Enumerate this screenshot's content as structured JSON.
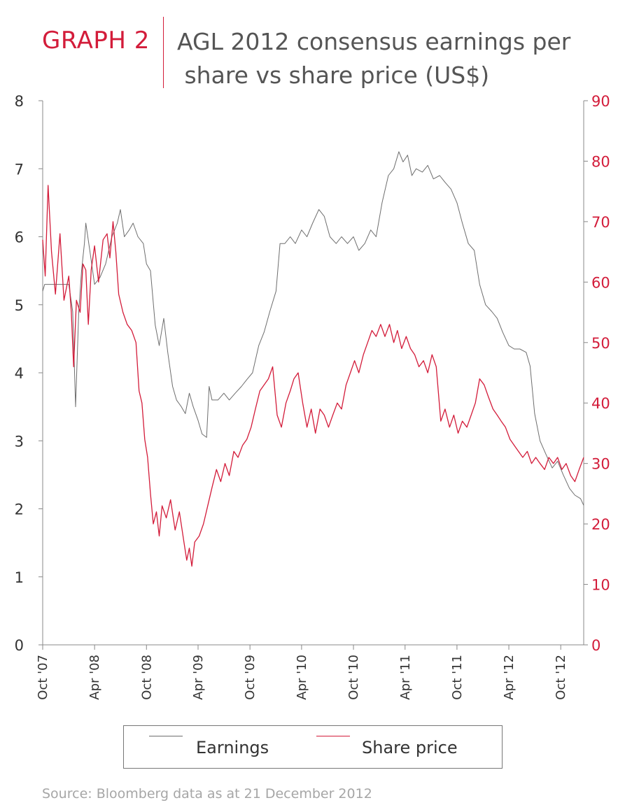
{
  "header": {
    "graph_label": "GRAPH 2",
    "title": "AGL 2012 consensus earnings per\n share vs share price (US$)"
  },
  "colors": {
    "earnings": "#6e6e6e",
    "share_price": "#d31c3a",
    "axis": "#888888",
    "grid": "#cfcfcf"
  },
  "legend": {
    "earnings_label": "Earnings",
    "share_price_label": "Share price"
  },
  "source": "Source: Bloomberg data as at 21 December 2012",
  "chart_data": {
    "type": "line",
    "title": "AGL 2012 consensus earnings per share vs share price (US$)",
    "x_tick_labels": [
      "Oct '07",
      "Apr '08",
      "Oct '08",
      "Apr '09",
      "Oct '09",
      "Apr '10",
      "Oct '10",
      "Apr '11",
      "Oct '11",
      "Apr '12",
      "Oct '12"
    ],
    "x_tick_dates": [
      "2007-10-01",
      "2008-04-01",
      "2008-10-01",
      "2009-04-01",
      "2009-10-01",
      "2010-04-01",
      "2010-10-01",
      "2011-04-01",
      "2011-10-01",
      "2012-04-01",
      "2012-10-01"
    ],
    "x_range": [
      "2007-10-01",
      "2012-12-21"
    ],
    "y_left": {
      "ticks": [
        0,
        1,
        2,
        3,
        4,
        5,
        6,
        7,
        8
      ],
      "range": [
        0,
        8
      ]
    },
    "y_right": {
      "ticks": [
        0,
        10,
        20,
        30,
        40,
        50,
        60,
        70,
        80,
        90
      ],
      "range": [
        0,
        90
      ]
    },
    "grid": false,
    "legend_position": "bottom",
    "series": [
      {
        "name": "Earnings",
        "axis": "left",
        "points": [
          [
            "2007-10-01",
            5.2
          ],
          [
            "2007-10-08",
            5.3
          ],
          [
            "2007-11-01",
            5.3
          ],
          [
            "2007-12-01",
            5.3
          ],
          [
            "2008-01-01",
            5.3
          ],
          [
            "2008-01-15",
            4.9
          ],
          [
            "2008-01-25",
            3.5
          ],
          [
            "2008-02-05",
            4.9
          ],
          [
            "2008-02-15",
            5.5
          ],
          [
            "2008-02-25",
            5.9
          ],
          [
            "2008-03-01",
            6.2
          ],
          [
            "2008-03-15",
            5.8
          ],
          [
            "2008-04-01",
            5.3
          ],
          [
            "2008-04-20",
            5.4
          ],
          [
            "2008-05-10",
            5.6
          ],
          [
            "2008-06-01",
            6.0
          ],
          [
            "2008-06-20",
            6.2
          ],
          [
            "2008-07-01",
            6.4
          ],
          [
            "2008-07-15",
            6.0
          ],
          [
            "2008-08-01",
            6.1
          ],
          [
            "2008-08-15",
            6.2
          ],
          [
            "2008-09-01",
            6.0
          ],
          [
            "2008-09-20",
            5.9
          ],
          [
            "2008-10-01",
            5.6
          ],
          [
            "2008-10-15",
            5.5
          ],
          [
            "2008-11-01",
            4.7
          ],
          [
            "2008-11-15",
            4.4
          ],
          [
            "2008-12-01",
            4.8
          ],
          [
            "2008-12-15",
            4.3
          ],
          [
            "2009-01-01",
            3.8
          ],
          [
            "2009-01-15",
            3.6
          ],
          [
            "2009-02-01",
            3.5
          ],
          [
            "2009-02-15",
            3.4
          ],
          [
            "2009-03-01",
            3.7
          ],
          [
            "2009-03-15",
            3.5
          ],
          [
            "2009-04-01",
            3.3
          ],
          [
            "2009-04-15",
            3.1
          ],
          [
            "2009-05-01",
            3.05
          ],
          [
            "2009-05-10",
            3.8
          ],
          [
            "2009-05-20",
            3.6
          ],
          [
            "2009-06-10",
            3.6
          ],
          [
            "2009-07-01",
            3.7
          ],
          [
            "2009-07-20",
            3.6
          ],
          [
            "2009-08-10",
            3.7
          ],
          [
            "2009-09-01",
            3.8
          ],
          [
            "2009-09-20",
            3.9
          ],
          [
            "2009-10-10",
            4.0
          ],
          [
            "2009-11-01",
            4.4
          ],
          [
            "2009-11-20",
            4.6
          ],
          [
            "2009-12-10",
            4.9
          ],
          [
            "2010-01-01",
            5.2
          ],
          [
            "2010-01-15",
            5.9
          ],
          [
            "2010-02-01",
            5.9
          ],
          [
            "2010-02-20",
            6.0
          ],
          [
            "2010-03-10",
            5.9
          ],
          [
            "2010-04-01",
            6.1
          ],
          [
            "2010-04-20",
            6.0
          ],
          [
            "2010-05-10",
            6.2
          ],
          [
            "2010-06-01",
            6.4
          ],
          [
            "2010-06-20",
            6.3
          ],
          [
            "2010-07-10",
            6.0
          ],
          [
            "2010-08-01",
            5.9
          ],
          [
            "2010-08-20",
            6.0
          ],
          [
            "2010-09-10",
            5.9
          ],
          [
            "2010-10-01",
            6.0
          ],
          [
            "2010-10-20",
            5.8
          ],
          [
            "2010-11-10",
            5.9
          ],
          [
            "2010-12-01",
            6.1
          ],
          [
            "2010-12-20",
            6.0
          ],
          [
            "2011-01-10",
            6.5
          ],
          [
            "2011-02-01",
            6.9
          ],
          [
            "2011-02-20",
            7.0
          ],
          [
            "2011-03-10",
            7.25
          ],
          [
            "2011-03-25",
            7.1
          ],
          [
            "2011-04-10",
            7.2
          ],
          [
            "2011-04-25",
            6.9
          ],
          [
            "2011-05-10",
            7.0
          ],
          [
            "2011-06-01",
            6.95
          ],
          [
            "2011-06-20",
            7.05
          ],
          [
            "2011-07-10",
            6.85
          ],
          [
            "2011-08-01",
            6.9
          ],
          [
            "2011-08-20",
            6.8
          ],
          [
            "2011-09-10",
            6.7
          ],
          [
            "2011-10-01",
            6.5
          ],
          [
            "2011-10-20",
            6.2
          ],
          [
            "2011-11-10",
            5.9
          ],
          [
            "2011-12-01",
            5.8
          ],
          [
            "2011-12-20",
            5.3
          ],
          [
            "2012-01-10",
            5.0
          ],
          [
            "2012-02-01",
            4.9
          ],
          [
            "2012-02-20",
            4.8
          ],
          [
            "2012-03-10",
            4.6
          ],
          [
            "2012-04-01",
            4.4
          ],
          [
            "2012-04-20",
            4.35
          ],
          [
            "2012-05-10",
            4.35
          ],
          [
            "2012-06-01",
            4.3
          ],
          [
            "2012-06-15",
            4.1
          ],
          [
            "2012-07-01",
            3.4
          ],
          [
            "2012-07-20",
            3.0
          ],
          [
            "2012-08-10",
            2.8
          ],
          [
            "2012-09-01",
            2.6
          ],
          [
            "2012-09-20",
            2.7
          ],
          [
            "2012-10-10",
            2.5
          ],
          [
            "2012-11-01",
            2.3
          ],
          [
            "2012-11-20",
            2.2
          ],
          [
            "2012-12-10",
            2.15
          ],
          [
            "2012-12-21",
            2.05
          ]
        ]
      },
      {
        "name": "Share price",
        "axis": "right",
        "points": [
          [
            "2007-10-01",
            67
          ],
          [
            "2007-10-10",
            61
          ],
          [
            "2007-10-20",
            76
          ],
          [
            "2007-11-01",
            65
          ],
          [
            "2007-11-15",
            58
          ],
          [
            "2007-12-01",
            68
          ],
          [
            "2007-12-15",
            57
          ],
          [
            "2008-01-01",
            61
          ],
          [
            "2008-01-10",
            55
          ],
          [
            "2008-01-18",
            46
          ],
          [
            "2008-01-28",
            57
          ],
          [
            "2008-02-10",
            55
          ],
          [
            "2008-02-20",
            63
          ],
          [
            "2008-03-01",
            62
          ],
          [
            "2008-03-10",
            53
          ],
          [
            "2008-03-20",
            62
          ],
          [
            "2008-04-01",
            66
          ],
          [
            "2008-04-15",
            60
          ],
          [
            "2008-05-01",
            67
          ],
          [
            "2008-05-15",
            68
          ],
          [
            "2008-05-25",
            64
          ],
          [
            "2008-06-05",
            70
          ],
          [
            "2008-06-15",
            65
          ],
          [
            "2008-06-25",
            58
          ],
          [
            "2008-07-10",
            55
          ],
          [
            "2008-07-25",
            53
          ],
          [
            "2008-08-10",
            52
          ],
          [
            "2008-08-25",
            50
          ],
          [
            "2008-09-05",
            42
          ],
          [
            "2008-09-15",
            40
          ],
          [
            "2008-09-25",
            34
          ],
          [
            "2008-10-05",
            31
          ],
          [
            "2008-10-15",
            25
          ],
          [
            "2008-10-25",
            20
          ],
          [
            "2008-11-05",
            22
          ],
          [
            "2008-11-15",
            18
          ],
          [
            "2008-11-25",
            23
          ],
          [
            "2008-12-10",
            21
          ],
          [
            "2008-12-25",
            24
          ],
          [
            "2009-01-10",
            19
          ],
          [
            "2009-01-25",
            22
          ],
          [
            "2009-02-10",
            17
          ],
          [
            "2009-02-20",
            14
          ],
          [
            "2009-03-01",
            16
          ],
          [
            "2009-03-10",
            13
          ],
          [
            "2009-03-20",
            17
          ],
          [
            "2009-04-05",
            18
          ],
          [
            "2009-04-20",
            20
          ],
          [
            "2009-05-05",
            23
          ],
          [
            "2009-05-20",
            26
          ],
          [
            "2009-06-05",
            29
          ],
          [
            "2009-06-20",
            27
          ],
          [
            "2009-07-05",
            30
          ],
          [
            "2009-07-20",
            28
          ],
          [
            "2009-08-05",
            32
          ],
          [
            "2009-08-20",
            31
          ],
          [
            "2009-09-05",
            33
          ],
          [
            "2009-09-20",
            34
          ],
          [
            "2009-10-05",
            36
          ],
          [
            "2009-10-20",
            39
          ],
          [
            "2009-11-05",
            42
          ],
          [
            "2009-11-20",
            43
          ],
          [
            "2009-12-05",
            44
          ],
          [
            "2009-12-20",
            46
          ],
          [
            "2010-01-05",
            38
          ],
          [
            "2010-01-20",
            36
          ],
          [
            "2010-02-05",
            40
          ],
          [
            "2010-02-20",
            42
          ],
          [
            "2010-03-05",
            44
          ],
          [
            "2010-03-20",
            45
          ],
          [
            "2010-04-05",
            40
          ],
          [
            "2010-04-20",
            36
          ],
          [
            "2010-05-05",
            39
          ],
          [
            "2010-05-20",
            35
          ],
          [
            "2010-06-05",
            39
          ],
          [
            "2010-06-20",
            38
          ],
          [
            "2010-07-05",
            36
          ],
          [
            "2010-07-20",
            38
          ],
          [
            "2010-08-05",
            40
          ],
          [
            "2010-08-20",
            39
          ],
          [
            "2010-09-05",
            43
          ],
          [
            "2010-09-20",
            45
          ],
          [
            "2010-10-05",
            47
          ],
          [
            "2010-10-20",
            45
          ],
          [
            "2010-11-05",
            48
          ],
          [
            "2010-11-20",
            50
          ],
          [
            "2010-12-05",
            52
          ],
          [
            "2010-12-20",
            51
          ],
          [
            "2011-01-05",
            53
          ],
          [
            "2011-01-20",
            51
          ],
          [
            "2011-02-05",
            53
          ],
          [
            "2011-02-20",
            50
          ],
          [
            "2011-03-05",
            52
          ],
          [
            "2011-03-20",
            49
          ],
          [
            "2011-04-05",
            51
          ],
          [
            "2011-04-20",
            49
          ],
          [
            "2011-05-05",
            48
          ],
          [
            "2011-05-20",
            46
          ],
          [
            "2011-06-05",
            47
          ],
          [
            "2011-06-20",
            45
          ],
          [
            "2011-07-05",
            48
          ],
          [
            "2011-07-20",
            46
          ],
          [
            "2011-08-05",
            37
          ],
          [
            "2011-08-20",
            39
          ],
          [
            "2011-09-05",
            36
          ],
          [
            "2011-09-20",
            38
          ],
          [
            "2011-10-05",
            35
          ],
          [
            "2011-10-20",
            37
          ],
          [
            "2011-11-05",
            36
          ],
          [
            "2011-11-20",
            38
          ],
          [
            "2011-12-05",
            40
          ],
          [
            "2011-12-20",
            44
          ],
          [
            "2012-01-05",
            43
          ],
          [
            "2012-01-20",
            41
          ],
          [
            "2012-02-05",
            39
          ],
          [
            "2012-02-20",
            38
          ],
          [
            "2012-03-05",
            37
          ],
          [
            "2012-03-20",
            36
          ],
          [
            "2012-04-05",
            34
          ],
          [
            "2012-04-20",
            33
          ],
          [
            "2012-05-05",
            32
          ],
          [
            "2012-05-20",
            31
          ],
          [
            "2012-06-05",
            32
          ],
          [
            "2012-06-20",
            30
          ],
          [
            "2012-07-05",
            31
          ],
          [
            "2012-07-20",
            30
          ],
          [
            "2012-08-05",
            29
          ],
          [
            "2012-08-20",
            31
          ],
          [
            "2012-09-05",
            30
          ],
          [
            "2012-09-20",
            31
          ],
          [
            "2012-10-05",
            29
          ],
          [
            "2012-10-20",
            30
          ],
          [
            "2012-11-05",
            28
          ],
          [
            "2012-11-20",
            27
          ],
          [
            "2012-12-05",
            29
          ],
          [
            "2012-12-21",
            31
          ]
        ]
      }
    ]
  }
}
